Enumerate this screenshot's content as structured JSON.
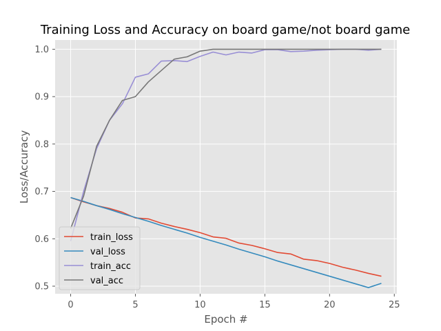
{
  "chart_data": {
    "type": "line",
    "title": "Training Loss and Accuracy on board game/not board game",
    "xlabel": "Epoch #",
    "ylabel": "Loss/Accuracy",
    "xlim": [
      -1.2,
      25.2
    ],
    "ylim": [
      0.484,
      1.0195
    ],
    "xticks": [
      0,
      5,
      10,
      15,
      20,
      25
    ],
    "yticks": [
      0.5,
      0.6,
      0.7,
      0.8,
      0.9,
      1.0
    ],
    "ytick_labels": [
      "0.5",
      "0.6",
      "0.7",
      "0.8",
      "0.9",
      "1.0"
    ],
    "grid": true,
    "legend_position": "lower-left",
    "style": "ggplot",
    "x": [
      0,
      1,
      2,
      3,
      4,
      5,
      6,
      7,
      8,
      9,
      10,
      11,
      12,
      13,
      14,
      15,
      16,
      17,
      18,
      19,
      20,
      21,
      22,
      23,
      24
    ],
    "series": [
      {
        "name": "train_loss",
        "color": "#E24A33",
        "values": [
          0.687,
          0.678,
          0.67,
          0.664,
          0.656,
          0.644,
          0.642,
          0.633,
          0.626,
          0.62,
          0.613,
          0.604,
          0.601,
          0.591,
          0.586,
          0.579,
          0.571,
          0.568,
          0.557,
          0.554,
          0.548,
          0.54,
          0.534,
          0.527,
          0.521
        ]
      },
      {
        "name": "val_loss",
        "color": "#348ABD",
        "values": [
          0.687,
          0.679,
          0.67,
          0.662,
          0.653,
          0.645,
          0.637,
          0.628,
          0.62,
          0.612,
          0.603,
          0.595,
          0.587,
          0.578,
          0.57,
          0.562,
          0.553,
          0.545,
          0.537,
          0.529,
          0.521,
          0.513,
          0.505,
          0.497,
          0.506
        ]
      },
      {
        "name": "train_acc",
        "color": "#988ED5",
        "values": [
          0.595,
          0.7,
          0.79,
          0.85,
          0.885,
          0.941,
          0.948,
          0.975,
          0.976,
          0.974,
          0.985,
          0.994,
          0.988,
          0.994,
          0.992,
          0.999,
          0.999,
          0.995,
          0.996,
          0.998,
          0.999,
          1.0,
          1.0,
          0.998,
          1.0
        ]
      },
      {
        "name": "val_acc",
        "color": "#777777",
        "values": [
          0.622,
          0.69,
          0.795,
          0.85,
          0.892,
          0.9,
          0.931,
          0.955,
          0.979,
          0.984,
          0.996,
          1.0,
          1.0,
          1.0,
          1.0,
          1.0,
          1.0,
          1.0,
          1.0,
          1.0,
          1.0,
          1.0,
          1.0,
          1.0,
          1.0
        ]
      }
    ]
  },
  "colors": {
    "plot_background": "#E5E5E5",
    "grid": "#FFFFFF",
    "tick_text": "#555555"
  }
}
